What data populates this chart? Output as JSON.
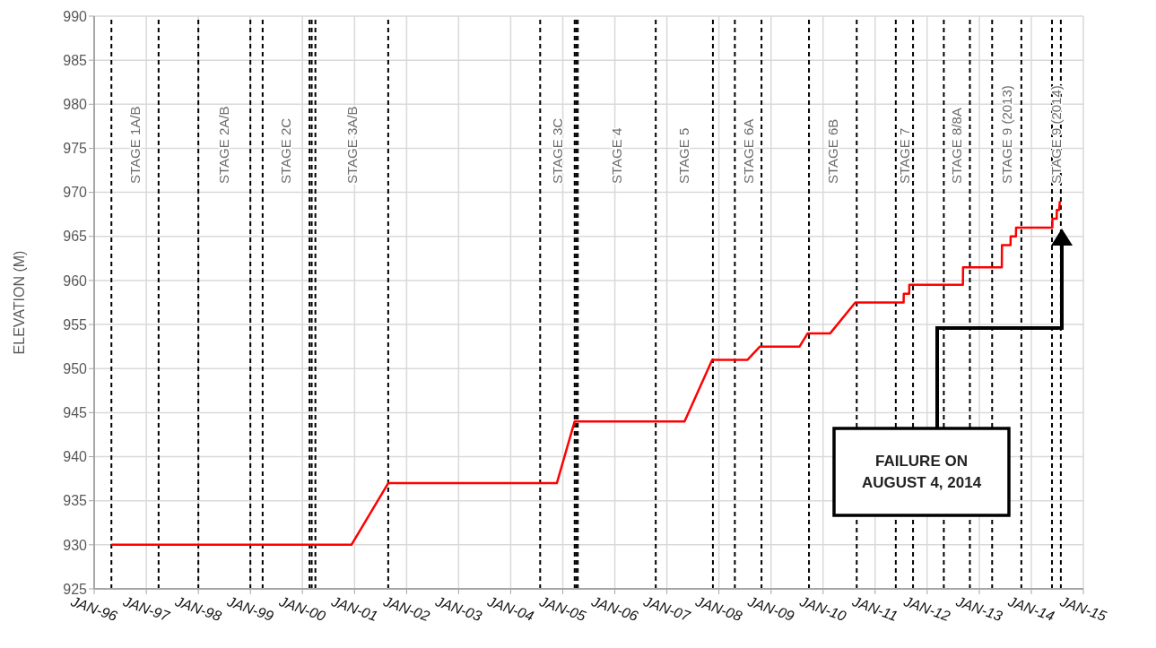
{
  "chart_data": {
    "type": "line",
    "ylabel": "ELEVATION (M)",
    "x": [
      "1996-05-01",
      "2000-12-10",
      "2001-08-25",
      "2004-11-20",
      "2005-03-25",
      "2007-05-05",
      "2007-11-15",
      "2008-07-20",
      "2008-10-15",
      "2009-07-20",
      "2009-09-15",
      "2010-02-20",
      "2010-08-15",
      "2011-07-20",
      "2011-07-21",
      "2011-08-28",
      "2011-08-29",
      "2012-09-08",
      "2012-09-09",
      "2013-06-08",
      "2013-06-09",
      "2013-08-08",
      "2013-08-09",
      "2013-09-15",
      "2013-09-16",
      "2014-05-28",
      "2014-05-29",
      "2014-06-28",
      "2014-06-29",
      "2014-07-15",
      "2014-07-20"
    ],
    "series": [
      {
        "color": "#ff0000",
        "values": [
          930,
          930,
          937,
          937,
          944,
          944,
          951,
          951,
          952.5,
          952.5,
          954,
          954,
          957.5,
          957.5,
          958.5,
          958.5,
          959.5,
          959.5,
          961.5,
          961.5,
          964,
          964,
          965,
          965,
          966,
          966,
          967,
          967,
          968,
          968,
          969
        ]
      }
    ],
    "xlim": [
      "1996-01-01",
      "2015-01-01"
    ],
    "xticks": [
      {
        "value": "1996-01-01",
        "label": "JAN-96"
      },
      {
        "value": "1997-01-01",
        "label": "JAN-97"
      },
      {
        "value": "1998-01-01",
        "label": "JAN-98"
      },
      {
        "value": "1999-01-01",
        "label": "JAN-99"
      },
      {
        "value": "2000-01-01",
        "label": "JAN-00"
      },
      {
        "value": "2001-01-01",
        "label": "JAN-01"
      },
      {
        "value": "2002-01-01",
        "label": "JAN-02"
      },
      {
        "value": "2003-01-01",
        "label": "JAN-03"
      },
      {
        "value": "2004-01-01",
        "label": "JAN-04"
      },
      {
        "value": "2005-01-01",
        "label": "JAN-05"
      },
      {
        "value": "2006-01-01",
        "label": "JAN-06"
      },
      {
        "value": "2007-01-01",
        "label": "JAN-07"
      },
      {
        "value": "2008-01-01",
        "label": "JAN-08"
      },
      {
        "value": "2009-01-01",
        "label": "JAN-09"
      },
      {
        "value": "2010-01-01",
        "label": "JAN-10"
      },
      {
        "value": "2011-01-01",
        "label": "JAN-11"
      },
      {
        "value": "2012-01-01",
        "label": "JAN-12"
      },
      {
        "value": "2013-01-01",
        "label": "JAN-13"
      },
      {
        "value": "2014-01-01",
        "label": "JAN-14"
      },
      {
        "value": "2015-01-01",
        "label": "JAN-15"
      }
    ],
    "ylim": [
      925,
      990
    ],
    "yticks": [
      925,
      930,
      935,
      940,
      945,
      950,
      955,
      960,
      965,
      970,
      975,
      980,
      985,
      990
    ],
    "grid": true,
    "ref_lines": [
      {
        "axis": "x",
        "value": "1996-05-01",
        "label": "STAGE 1A/B",
        "color": "#000000",
        "line_style": "dashed"
      },
      {
        "axis": "x",
        "value": "1997-03-28",
        "color": "#000000",
        "line_style": "dashed"
      },
      {
        "axis": "x",
        "value": "1998-01-01",
        "label": "STAGE 2A/B",
        "color": "#000000",
        "line_style": "dashed"
      },
      {
        "axis": "x",
        "value": "1999-01-01",
        "color": "#000000",
        "line_style": "dashed"
      },
      {
        "axis": "x",
        "value": "1999-03-28",
        "label": "STAGE 2C",
        "color": "#000000",
        "line_style": "dashed"
      },
      {
        "axis": "x",
        "value": "2000-02-20",
        "color": "#000000",
        "line_style": "dashed"
      },
      {
        "axis": "x",
        "value": "2000-03-06",
        "color": "#000000",
        "line_style": "dashed"
      },
      {
        "axis": "x",
        "value": "2000-04-01",
        "label": "STAGE 3A/B",
        "color": "#000000",
        "line_style": "dashed"
      },
      {
        "axis": "x",
        "value": "2001-08-25",
        "color": "#000000",
        "line_style": "dashed"
      },
      {
        "axis": "x",
        "value": "2004-07-26",
        "label": "STAGE 3C",
        "color": "#000000",
        "line_style": "dashed"
      },
      {
        "axis": "x",
        "value": "2005-03-25",
        "color": "#000000",
        "line_style": "dashed"
      },
      {
        "axis": "x",
        "value": "2005-04-05",
        "color": "#000000",
        "line_style": "dashed"
      },
      {
        "axis": "x",
        "value": "2005-04-16",
        "label": "STAGE 4",
        "color": "#000000",
        "line_style": "dashed"
      },
      {
        "axis": "x",
        "value": "2006-10-15",
        "label": "STAGE 5",
        "color": "#000000",
        "line_style": "dashed"
      },
      {
        "axis": "x",
        "value": "2007-11-20",
        "color": "#000000",
        "line_style": "dashed"
      },
      {
        "axis": "x",
        "value": "2008-04-22",
        "label": "STAGE 6A",
        "color": "#000000",
        "line_style": "dashed"
      },
      {
        "axis": "x",
        "value": "2008-10-26",
        "color": "#000000",
        "line_style": "dashed"
      },
      {
        "axis": "x",
        "value": "2009-09-24",
        "label": "STAGE 6B",
        "color": "#000000",
        "line_style": "dashed"
      },
      {
        "axis": "x",
        "value": "2010-08-25",
        "color": "#000000",
        "line_style": "dashed"
      },
      {
        "axis": "x",
        "value": "2011-05-26",
        "label": "STAGE 7",
        "color": "#000000",
        "line_style": "dashed"
      },
      {
        "axis": "x",
        "value": "2011-09-24",
        "color": "#000000",
        "line_style": "dashed"
      },
      {
        "axis": "x",
        "value": "2012-04-27",
        "label": "STAGE 8/8A",
        "color": "#000000",
        "line_style": "dashed"
      },
      {
        "axis": "x",
        "value": "2012-10-27",
        "color": "#000000",
        "line_style": "dashed"
      },
      {
        "axis": "x",
        "value": "2013-04-01",
        "label": "STAGE 9 (2013)",
        "color": "#000000",
        "line_style": "dashed"
      },
      {
        "axis": "x",
        "value": "2013-10-23",
        "color": "#000000",
        "line_style": "dashed"
      },
      {
        "axis": "x",
        "value": "2014-05-26",
        "label": "STAGE 9 (2014)",
        "color": "#000000",
        "line_style": "dashed"
      },
      {
        "axis": "x",
        "value": "2014-07-27",
        "color": "#000000",
        "line_style": "dashed"
      }
    ],
    "annotations": [
      "FAILURE ON AUGUST 4, 2014"
    ]
  }
}
